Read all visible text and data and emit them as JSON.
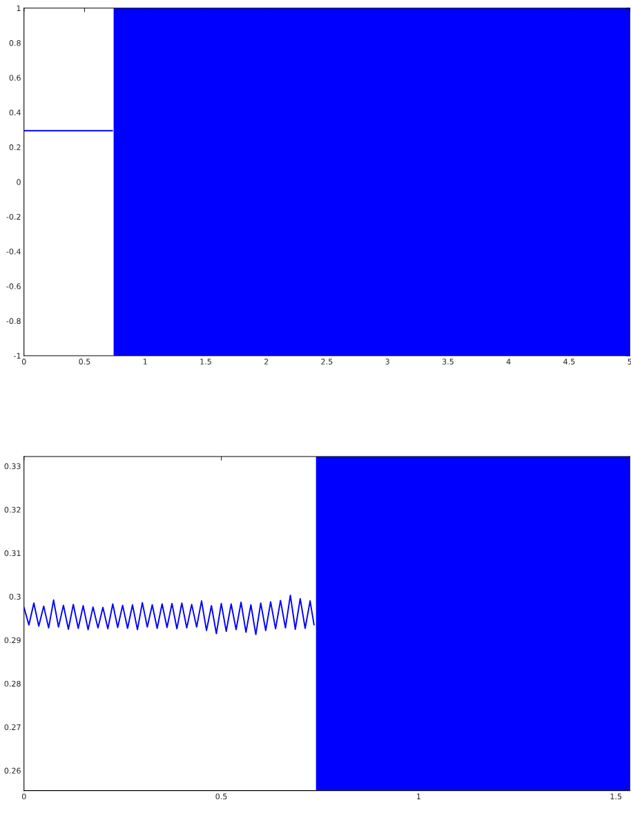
{
  "chart_data": [
    {
      "type": "line",
      "xlim": [
        0,
        5
      ],
      "ylim": [
        -1,
        1
      ],
      "xticks": [
        0,
        0.5,
        1,
        1.5,
        2,
        2.5,
        3,
        3.5,
        4,
        4.5,
        5
      ],
      "yticks": [
        -1,
        -0.8,
        -0.6,
        -0.4,
        -0.2,
        0,
        0.2,
        0.4,
        0.6,
        0.8,
        1
      ],
      "grid": false,
      "series": [
        {
          "color": "#0000ff",
          "x": [
            0,
            0.1,
            0.2,
            0.3,
            0.4,
            0.5,
            0.6,
            0.73
          ],
          "values": [
            0.295,
            0.295,
            0.295,
            0.295,
            0.295,
            0.295,
            0.295,
            0.295
          ]
        }
      ],
      "bands": [
        {
          "axis": "x",
          "from": 0.74,
          "to": 5,
          "color": "#0000ff"
        }
      ]
    },
    {
      "type": "line",
      "xlim": [
        0,
        1.535
      ],
      "ylim": [
        0.2554,
        0.3322
      ],
      "xticks": [
        0,
        0.5,
        1,
        1.5
      ],
      "yticks": [
        0.26,
        0.27,
        0.28,
        0.29,
        0.3,
        0.31,
        0.32,
        0.33
      ],
      "grid": false,
      "series": [
        {
          "color": "#0000ff",
          "x": [
            0,
            0.0125,
            0.025,
            0.0375,
            0.05,
            0.0625,
            0.075,
            0.0875,
            0.1,
            0.1125,
            0.125,
            0.1375,
            0.15,
            0.1625,
            0.175,
            0.1875,
            0.2,
            0.2125,
            0.225,
            0.2375,
            0.25,
            0.2625,
            0.275,
            0.2875,
            0.3,
            0.3125,
            0.325,
            0.3375,
            0.35,
            0.3625,
            0.375,
            0.3875,
            0.4,
            0.4125,
            0.425,
            0.4375,
            0.45,
            0.4625,
            0.475,
            0.4875,
            0.5,
            0.5125,
            0.525,
            0.5375,
            0.55,
            0.5625,
            0.575,
            0.5875,
            0.6,
            0.6125,
            0.625,
            0.6375,
            0.65,
            0.6625,
            0.675,
            0.6875,
            0.7,
            0.7125,
            0.725,
            0.735
          ],
          "values": [
            0.2975,
            0.2935,
            0.2985,
            0.2932,
            0.2978,
            0.2928,
            0.2992,
            0.293,
            0.298,
            0.2925,
            0.2982,
            0.2927,
            0.2979,
            0.2924,
            0.2976,
            0.2928,
            0.2975,
            0.2926,
            0.2983,
            0.2929,
            0.298,
            0.2927,
            0.2981,
            0.2924,
            0.2986,
            0.293,
            0.2981,
            0.2927,
            0.2983,
            0.2929,
            0.2984,
            0.2926,
            0.2985,
            0.2928,
            0.2982,
            0.293,
            0.299,
            0.2922,
            0.2979,
            0.2915,
            0.2984,
            0.292,
            0.2983,
            0.2924,
            0.2987,
            0.2918,
            0.2981,
            0.2913,
            0.2985,
            0.2922,
            0.2988,
            0.2926,
            0.2991,
            0.2928,
            0.3003,
            0.2925,
            0.2995,
            0.2927,
            0.299,
            0.2935
          ]
        }
      ],
      "bands": [
        {
          "axis": "x",
          "from": 0.74,
          "to": 1.535,
          "color": "#0000ff"
        }
      ]
    }
  ]
}
